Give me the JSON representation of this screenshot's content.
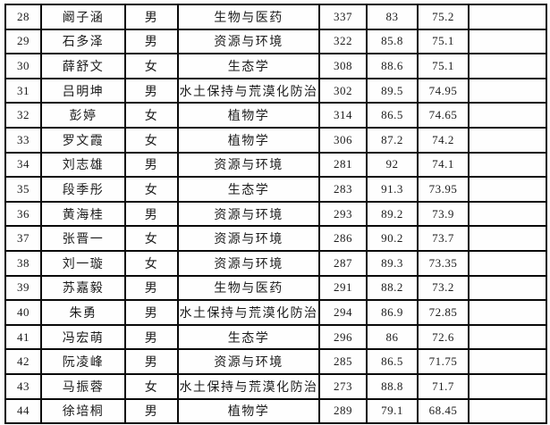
{
  "table": {
    "rows": [
      [
        "28",
        "阚子涵",
        "男",
        "生物与医药",
        "337",
        "83",
        "75.2",
        ""
      ],
      [
        "29",
        "石多泽",
        "男",
        "资源与环境",
        "322",
        "85.8",
        "75.1",
        ""
      ],
      [
        "30",
        "薛舒文",
        "女",
        "生态学",
        "308",
        "88.6",
        "75.1",
        ""
      ],
      [
        "31",
        "吕明坤",
        "男",
        "水土保持与荒漠化防治",
        "302",
        "89.5",
        "74.95",
        ""
      ],
      [
        "32",
        "彭婷",
        "女",
        "植物学",
        "314",
        "86.5",
        "74.65",
        ""
      ],
      [
        "33",
        "罗文霞",
        "女",
        "植物学",
        "306",
        "87.2",
        "74.2",
        ""
      ],
      [
        "34",
        "刘志雄",
        "男",
        "资源与环境",
        "281",
        "92",
        "74.1",
        ""
      ],
      [
        "35",
        "段季彤",
        "女",
        "生态学",
        "283",
        "91.3",
        "73.95",
        ""
      ],
      [
        "36",
        "黄海桂",
        "男",
        "资源与环境",
        "293",
        "89.2",
        "73.9",
        ""
      ],
      [
        "37",
        "张晋一",
        "女",
        "资源与环境",
        "286",
        "90.2",
        "73.7",
        ""
      ],
      [
        "38",
        "刘一璇",
        "女",
        "资源与环境",
        "287",
        "89.3",
        "73.35",
        ""
      ],
      [
        "39",
        "苏嘉毅",
        "男",
        "生物与医药",
        "291",
        "88.2",
        "73.2",
        ""
      ],
      [
        "40",
        "朱勇",
        "男",
        "水土保持与荒漠化防治",
        "294",
        "86.9",
        "72.85",
        ""
      ],
      [
        "41",
        "冯宏萌",
        "男",
        "生态学",
        "296",
        "86",
        "72.6",
        ""
      ],
      [
        "42",
        "阮凌峰",
        "男",
        "资源与环境",
        "285",
        "86.5",
        "71.75",
        ""
      ],
      [
        "43",
        "马振蓉",
        "女",
        "水土保持与荒漠化防治",
        "273",
        "88.8",
        "71.7",
        ""
      ],
      [
        "44",
        "徐培桐",
        "男",
        "植物学",
        "289",
        "79.1",
        "68.45",
        ""
      ]
    ]
  }
}
